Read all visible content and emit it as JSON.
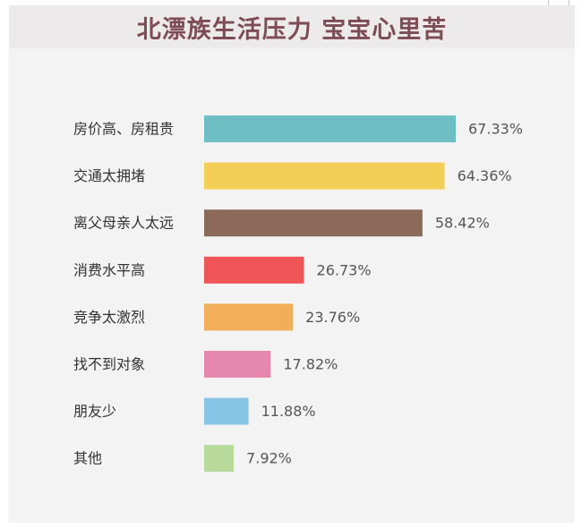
{
  "title": "北漂族生活压力 宝宝心里苦",
  "chart_data": {
    "type": "bar",
    "orientation": "horizontal",
    "title": "北漂族生活压力 宝宝心里苦",
    "categories": [
      "房价高、房租贵",
      "交通太拥堵",
      "离父母亲人太远",
      "消费水平高",
      "竞争太激烈",
      "找不到对象",
      "朋友少",
      "其他"
    ],
    "values": [
      67.33,
      64.36,
      58.42,
      26.73,
      23.76,
      17.82,
      11.88,
      7.92
    ],
    "value_labels": [
      "67.33%",
      "64.36%",
      "58.42%",
      "26.73%",
      "23.76%",
      "17.82%",
      "11.88%",
      "7.92%"
    ],
    "colors": [
      "#6dbfc3",
      "#f4cf57",
      "#8c6a59",
      "#ef5457",
      "#f2ae58",
      "#e687ad",
      "#88c4e6",
      "#b7d99a"
    ],
    "xlim": [
      0,
      67.33
    ],
    "grid": false,
    "legend": "none"
  }
}
